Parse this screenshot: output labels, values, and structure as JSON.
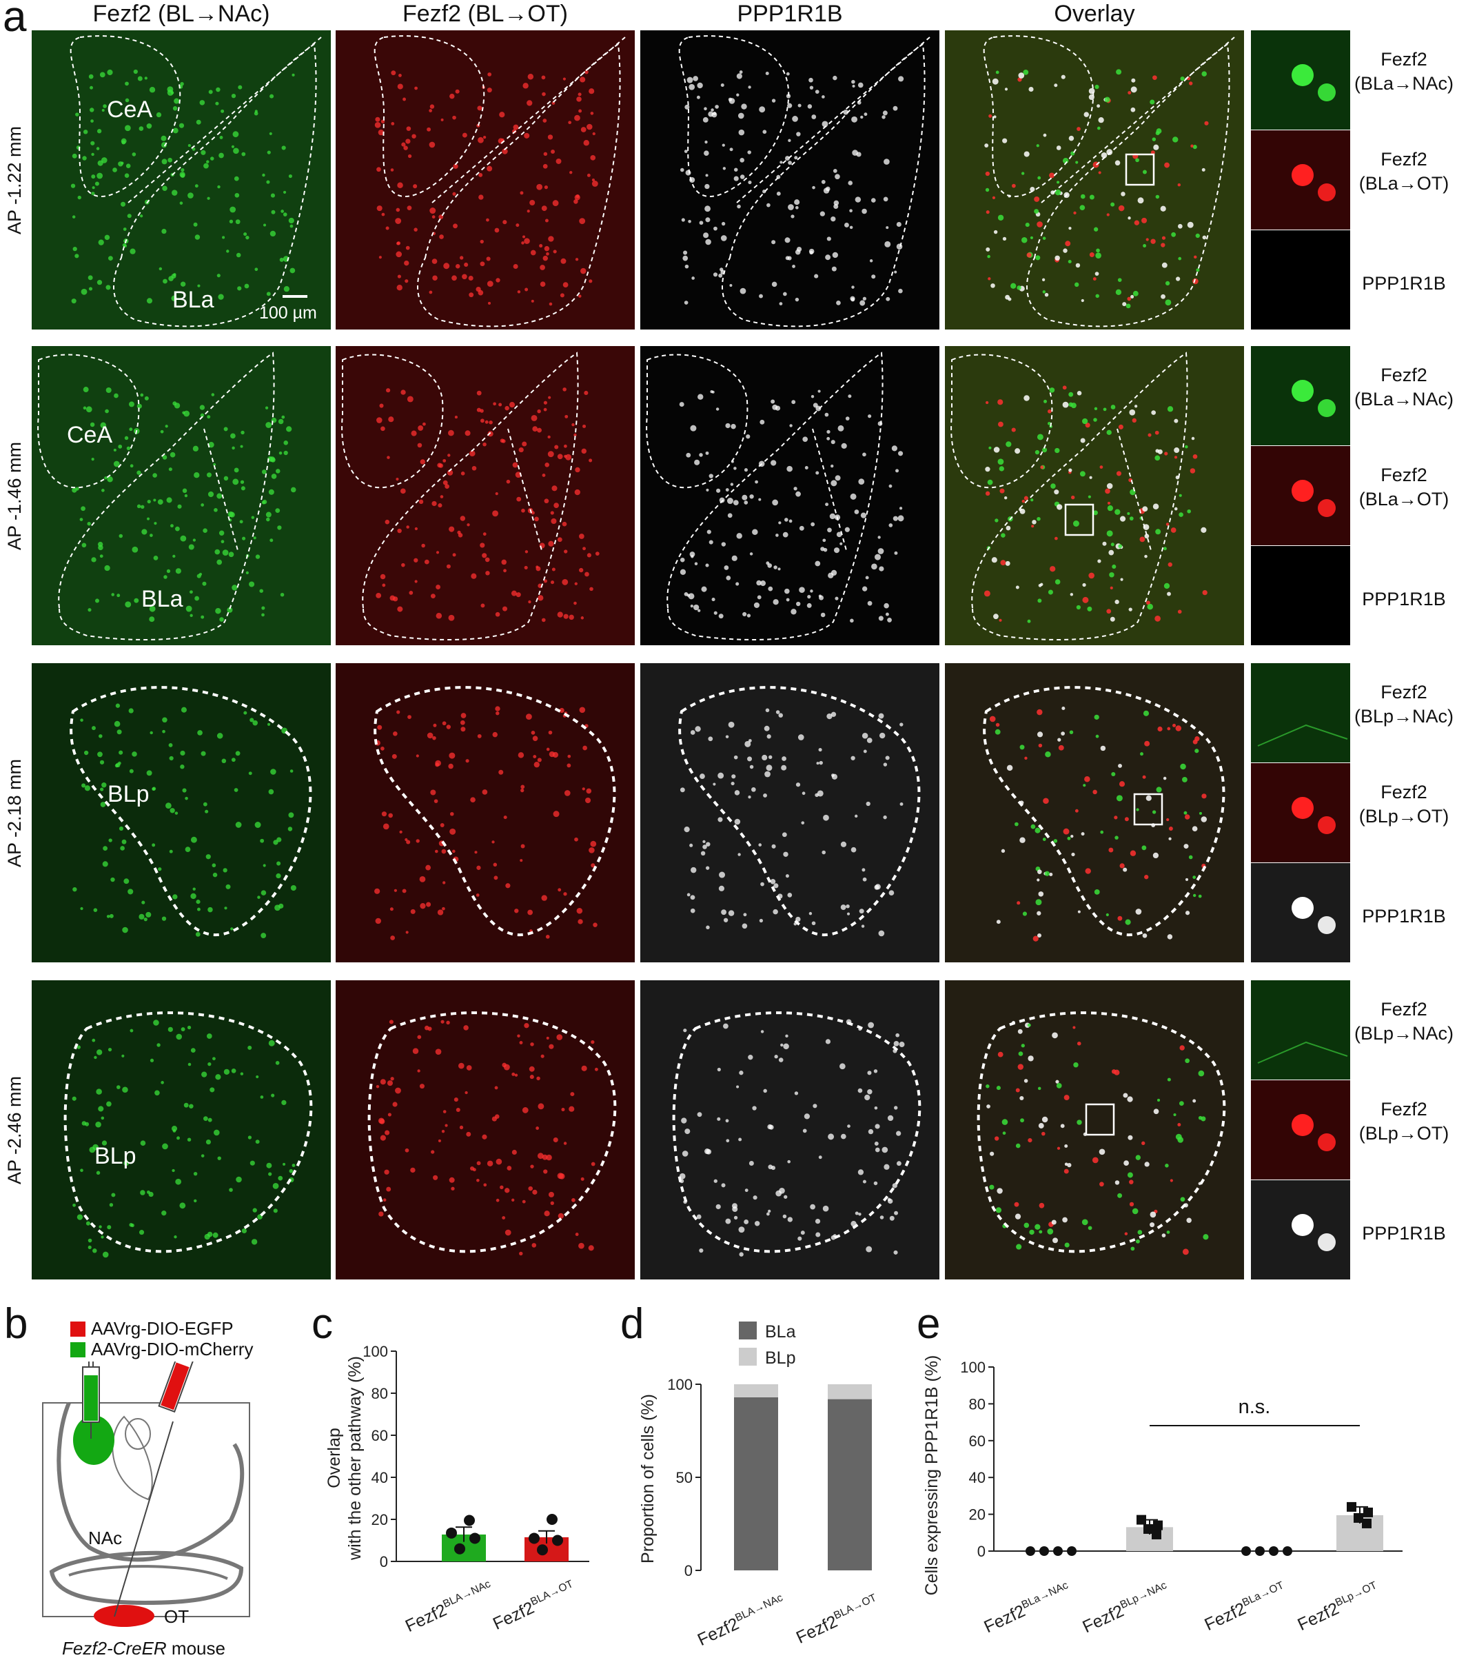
{
  "panels": {
    "a": "a",
    "b": "b",
    "c": "c",
    "d": "d",
    "e": "e"
  },
  "panel_a": {
    "col_headers": [
      "Fezf2 (BL→NAc)",
      "Fezf2 (BL→OT)",
      "PPP1R1B",
      "Overlay"
    ],
    "row_labels": [
      "AP -1.22 mm",
      "AP -1.46 mm",
      "AP -2.18 mm",
      "AP -2.46 mm"
    ],
    "region_labels": {
      "r0_top": "CeA",
      "r0_bottom": "BLa",
      "r1_top": "CeA",
      "r1_bottom": "BLa",
      "r2": "BLp",
      "r3": "BLp"
    },
    "scale_bar": "100 µm",
    "side_labels": [
      [
        "Fezf2",
        "(BLa→NAc)",
        "Fezf2",
        "(BLa→OT)",
        "PPP1R1B"
      ],
      [
        "Fezf2",
        "(BLa→NAc)",
        "Fezf2",
        "(BLa→OT)",
        "PPP1R1B"
      ],
      [
        "Fezf2",
        "(BLp→NAc)",
        "Fezf2",
        "(BLp→OT)",
        "PPP1R1B"
      ],
      [
        "Fezf2",
        "(BLp→NAc)",
        "Fezf2",
        "(BLp→OT)",
        "PPP1R1B"
      ]
    ],
    "colors": {
      "green": "#1a8f1a",
      "red": "#b01010",
      "gray": "#ffffff",
      "bg_green": "#0f3d10",
      "bg_red": "#3a0606"
    }
  },
  "panel_b": {
    "legend": [
      {
        "label": "AAVrg-DIO-EGFP",
        "color": "#e01010"
      },
      {
        "label": "AAVrg-DIO-mCherry",
        "color": "#13a813"
      }
    ],
    "nac_label": "NAc",
    "ot_label": "OT",
    "caption_italic": "Fezf2-CreER",
    "caption_rest": " mouse"
  },
  "chart_data": [
    {
      "id": "c",
      "type": "bar",
      "ylabel_line1": "Overlap",
      "ylabel_line2": "with the other pathway (%)",
      "ylim": [
        0,
        100
      ],
      "yticks": [
        0,
        20,
        40,
        60,
        80,
        100
      ],
      "categories": [
        {
          "base": "Fezf2",
          "sup": "BLA→NAc"
        },
        {
          "base": "Fezf2",
          "sup": "BLA→OT"
        }
      ],
      "values": [
        12.8,
        11.5
      ],
      "errors": [
        3.5,
        3.0
      ],
      "colors": [
        "#1faa1f",
        "#d51818"
      ],
      "points": [
        [
          19.5,
          13.5,
          11.0,
          6.0
        ],
        [
          20.0,
          11.0,
          10.0,
          5.5
        ]
      ]
    },
    {
      "id": "d",
      "type": "bar",
      "stacked": true,
      "ylabel": "Proportion of cells (%)",
      "ylim": [
        0,
        100
      ],
      "yticks": [
        0,
        50,
        100
      ],
      "categories": [
        {
          "base": "Fezf2",
          "sup": "BLA→NAc"
        },
        {
          "base": "Fezf2",
          "sup": "BLA→OT"
        }
      ],
      "series": [
        {
          "name": "BLa",
          "values": [
            93,
            92
          ],
          "color": "#666666"
        },
        {
          "name": "BLp",
          "values": [
            7,
            8
          ],
          "color": "#cccccc"
        }
      ]
    },
    {
      "id": "e",
      "type": "bar",
      "ylabel": "Cells expressing PPP1R1B (%)",
      "ylim": [
        0,
        100
      ],
      "yticks": [
        0,
        20,
        40,
        60,
        80,
        100
      ],
      "categories": [
        {
          "base": "Fezf2",
          "sup": "BLa→NAc"
        },
        {
          "base": "Fezf2",
          "sup": "BLp→NAc"
        },
        {
          "base": "Fezf2",
          "sup": "BLa→OT"
        },
        {
          "base": "Fezf2",
          "sup": "BLp→OT"
        }
      ],
      "values": [
        0,
        13,
        0,
        19.5
      ],
      "errors": [
        0,
        4,
        0,
        4.5
      ],
      "color": "#cccccc",
      "points": [
        [
          0,
          0,
          0,
          0
        ],
        [
          17,
          14,
          12,
          9
        ],
        [
          0,
          0,
          0,
          0
        ],
        [
          24,
          21,
          18,
          15
        ]
      ],
      "annotation": "n.s."
    }
  ]
}
